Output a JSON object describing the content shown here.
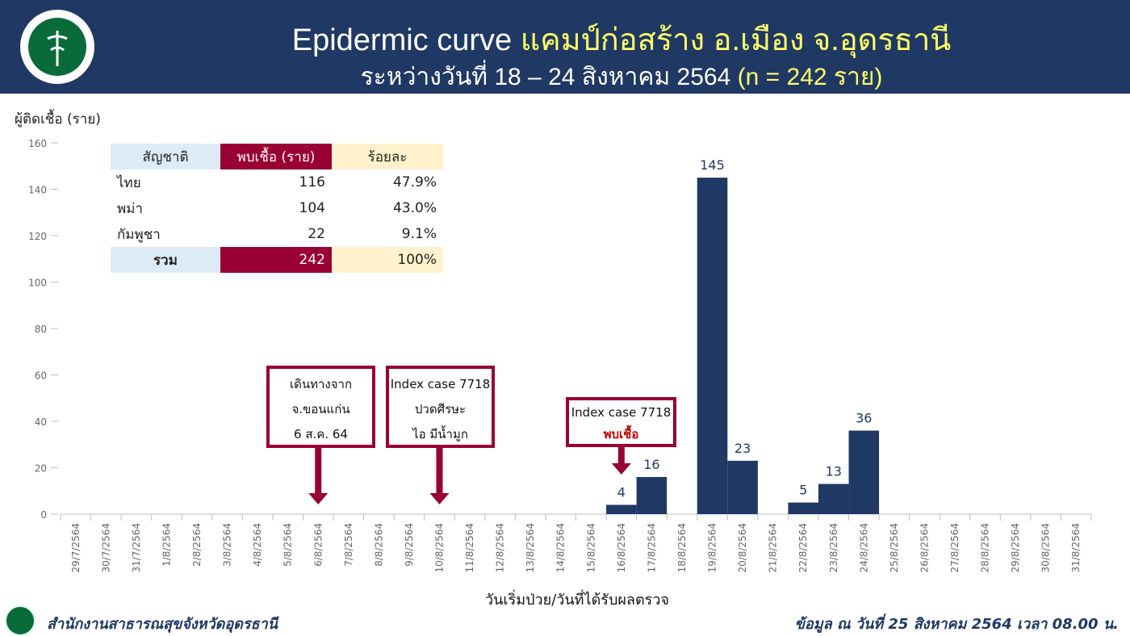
{
  "header": {
    "title_en": "Epidermic curve",
    "title_th": "แคมป์ก่อสร้าง อ.เมือง จ.อุดรธานี",
    "subtitle_main": "ระหว่างวันที่ 18 – 24 สิงหาคม 2564",
    "subtitle_n": "(n = 242 ราย)"
  },
  "colors": {
    "header_bg": "#203864",
    "bar": "#203864",
    "accent_red": "#990033",
    "highlight_yellow": "#ffff66"
  },
  "table": {
    "headers": [
      "สัญชาติ",
      "พบเชื้อ (ราย)",
      "ร้อยละ"
    ],
    "rows": [
      [
        "ไทย",
        "116",
        "47.9%"
      ],
      [
        "พม่า",
        "104",
        "43.0%"
      ],
      [
        "กัมพูชา",
        "22",
        "9.1%"
      ]
    ],
    "total": [
      "รวม",
      "242",
      "100%"
    ]
  },
  "annotations": [
    {
      "lines": [
        "เดินทางจาก",
        "จ.ขอนแก่น",
        "6 ส.ค. 64"
      ],
      "target": "6/8/2564"
    },
    {
      "lines": [
        "Index case 7718",
        "ปวดศีรษะ",
        "ไอ มีน้ำมูก"
      ],
      "target": "10/8/2564"
    },
    {
      "lines": [
        "Index case 7718",
        "พบเชื้อ"
      ],
      "target": "16/8/2564"
    }
  ],
  "chart_data": {
    "type": "bar",
    "ylabel": "ผู้ติดเชื้อ (ราย)",
    "xlabel": "วันเริ่มป่วย/วันที่ได้รับผลตรวจ",
    "ylim": [
      0,
      160
    ],
    "yticks": [
      0,
      20,
      40,
      60,
      80,
      100,
      120,
      140,
      160
    ],
    "grid": false,
    "categories": [
      "29/7/2564",
      "30/7/2564",
      "31/7/2564",
      "1/8/2564",
      "2/8/2564",
      "3/8/2564",
      "4/8/2564",
      "5/8/2564",
      "6/8/2564",
      "7/8/2564",
      "8/8/2564",
      "9/8/2564",
      "10/8/2564",
      "11/8/2564",
      "12/8/2564",
      "13/8/2564",
      "14/8/2564",
      "15/8/2564",
      "16/8/2564",
      "17/8/2564",
      "18/8/2564",
      "19/8/2564",
      "20/8/2564",
      "21/8/2564",
      "22/8/2564",
      "23/8/2564",
      "24/8/2564",
      "25/8/2564",
      "26/8/2564",
      "27/8/2564",
      "28/8/2564",
      "29/8/2564",
      "30/8/2564",
      "31/8/2564"
    ],
    "values": [
      0,
      0,
      0,
      0,
      0,
      0,
      0,
      0,
      0,
      0,
      0,
      0,
      0,
      0,
      0,
      0,
      0,
      0,
      4,
      16,
      0,
      145,
      23,
      0,
      5,
      13,
      36,
      0,
      0,
      0,
      0,
      0,
      0,
      0
    ]
  },
  "footer": {
    "org": "สำนักงานสาธารณสุขจังหวัดอุดรธานี",
    "as_of": "ข้อมูล ณ วันที่ 25 สิงหาคม 2564 เวลา 08.00 น."
  }
}
